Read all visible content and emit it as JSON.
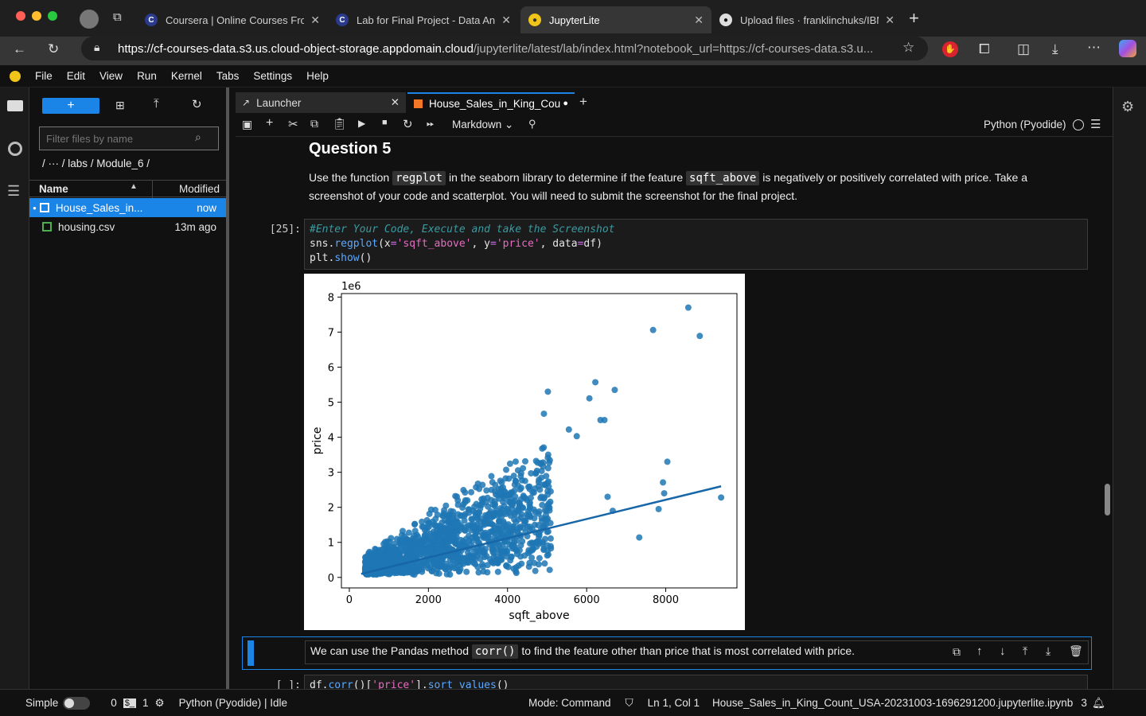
{
  "browser": {
    "tabs": [
      {
        "title": "Coursera | Online Courses From",
        "icon": "coursera-icon"
      },
      {
        "title": "Lab for Final Project - Data Ana",
        "icon": "coursera-icon"
      },
      {
        "title": "JupyterLite",
        "icon": "jupyter-icon",
        "active": true
      },
      {
        "title": "Upload files · franklinchuks/IBM",
        "icon": "github-icon"
      }
    ],
    "url_host": "https://cf-courses-data.s3.us.cloud-object-storage.appdomain.cloud",
    "url_path": "/jupyterlite/latest/lab/index.html?notebook_url=https://cf-courses-data.s3.u..."
  },
  "menu": [
    "File",
    "Edit",
    "View",
    "Run",
    "Kernel",
    "Tabs",
    "Settings",
    "Help"
  ],
  "filebrowser": {
    "new_label": "+",
    "filter_placeholder": "Filter files by name",
    "breadcrumb": "/  ···  / labs / Module_6 /",
    "col_name": "Name",
    "col_modified": "Modified",
    "files": [
      {
        "name": "House_Sales_in...",
        "modified": "now",
        "selected": true,
        "type": "notebook"
      },
      {
        "name": "housing.csv",
        "modified": "13m ago",
        "selected": false,
        "type": "csv"
      }
    ]
  },
  "notebook_tabs": [
    {
      "label": "Launcher"
    },
    {
      "label": "House_Sales_in_King_Cou",
      "active": true
    }
  ],
  "toolbar": {
    "cell_type": "Markdown",
    "kernel": "Python (Pyodide)"
  },
  "cells": {
    "q5_heading": "Question 5",
    "q5_text_1": "Use the function ",
    "q5_code_1": "regplot",
    "q5_text_2": " in the seaborn library to determine if the feature ",
    "q5_code_2": "sqft_above",
    "q5_text_3": " is negatively or positively correlated with price. Take a",
    "q5_text_4": "screenshot of your code and scatterplot. You will need to submit the screenshot for the final project.",
    "code_prompt": "[25]:",
    "code_line1": "#Enter Your Code, Execute and take the Screenshot",
    "md2_text_1": "We can use the Pandas method ",
    "md2_code": "corr()",
    "md2_text_2": " to find the feature other than price that is most correlated with price.",
    "code2_prompt": "[ ]:"
  },
  "chart_data": {
    "type": "scatter",
    "title": "",
    "xlabel": "sqft_above",
    "ylabel": "price",
    "y_scale_label": "1e6",
    "xlim": [
      -200,
      9800
    ],
    "ylim": [
      -0.3,
      8.1
    ],
    "xticks": [
      "0",
      "2000",
      "4000",
      "6000",
      "8000"
    ],
    "yticks": [
      "0",
      "1",
      "2",
      "3",
      "4",
      "5",
      "6",
      "7",
      "8"
    ],
    "points_color": "#1f77b4",
    "regression_line": {
      "x": [
        300,
        9400
      ],
      "y": [
        0.1,
        2.6
      ]
    },
    "outliers": [
      {
        "x": 8570,
        "y": 7.7
      },
      {
        "x": 7680,
        "y": 7.06
      },
      {
        "x": 8860,
        "y": 6.89
      },
      {
        "x": 6220,
        "y": 5.57
      },
      {
        "x": 6710,
        "y": 5.35
      },
      {
        "x": 5020,
        "y": 5.3
      },
      {
        "x": 6070,
        "y": 5.11
      },
      {
        "x": 4920,
        "y": 4.67
      },
      {
        "x": 6350,
        "y": 4.49
      },
      {
        "x": 6450,
        "y": 4.49
      },
      {
        "x": 5550,
        "y": 4.22
      },
      {
        "x": 5750,
        "y": 4.03
      },
      {
        "x": 8040,
        "y": 3.3
      },
      {
        "x": 7930,
        "y": 2.71
      },
      {
        "x": 7960,
        "y": 2.4
      },
      {
        "x": 9400,
        "y": 2.28
      },
      {
        "x": 7820,
        "y": 1.95
      },
      {
        "x": 7330,
        "y": 1.14
      },
      {
        "x": 6660,
        "y": 1.9
      },
      {
        "x": 6530,
        "y": 2.3
      }
    ]
  },
  "status": {
    "mode_label": "Simple",
    "counts": "0",
    "count2": "1",
    "kernel_status": "Python (Pyodide) | Idle",
    "mode": "Mode: Command",
    "cursor": "Ln 1, Col 1",
    "filename": "House_Sales_in_King_Count_USA-20231003-1696291200.jupyterlite.ipynb",
    "notifications": "3"
  }
}
